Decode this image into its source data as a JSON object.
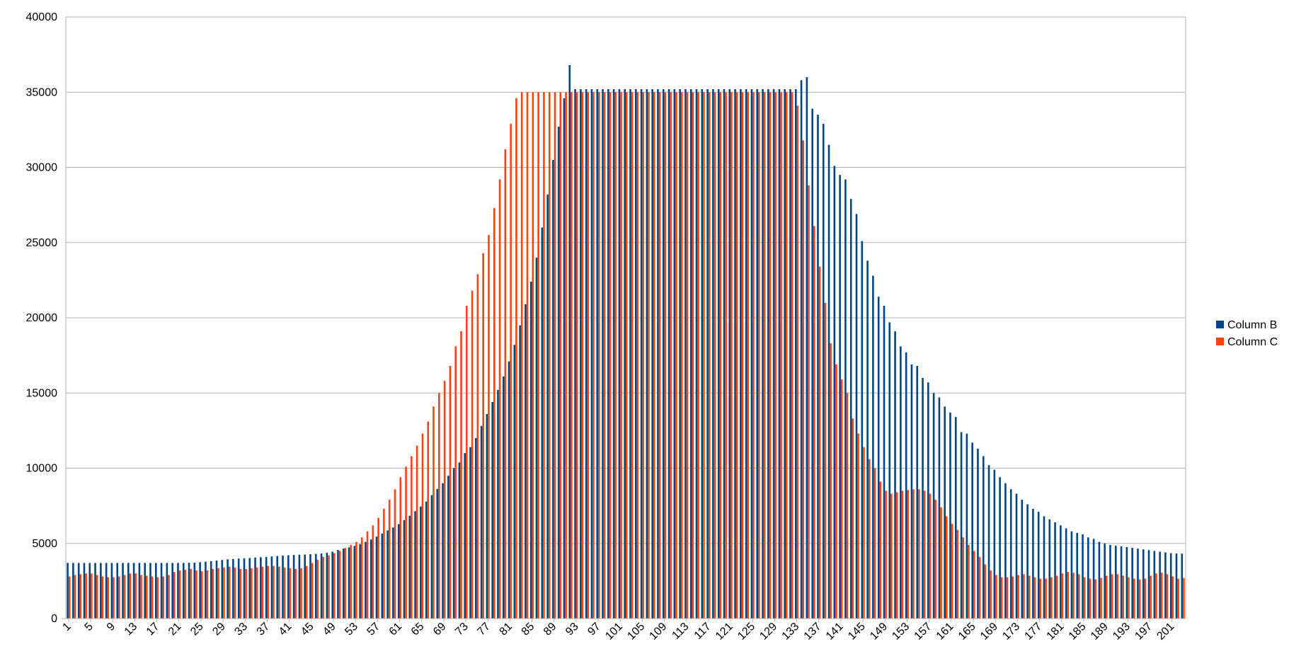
{
  "chart_data": {
    "type": "bar",
    "title": "",
    "xlabel": "",
    "ylabel": "",
    "x_start": 1,
    "x_end": 203,
    "x_tick_step": 4,
    "ylim": [
      0,
      40000
    ],
    "y_ticks": [
      0,
      5000,
      10000,
      15000,
      20000,
      25000,
      30000,
      35000,
      40000
    ],
    "grid": true,
    "legend_position": "right",
    "series": [
      {
        "name": "Column B",
        "color": "#004586",
        "values": [
          3700,
          3700,
          3700,
          3700,
          3700,
          3700,
          3700,
          3700,
          3700,
          3700,
          3700,
          3700,
          3700,
          3700,
          3700,
          3700,
          3700,
          3700,
          3700,
          3700,
          3700,
          3700,
          3710,
          3720,
          3750,
          3780,
          3820,
          3860,
          3900,
          3940,
          3960,
          3990,
          4010,
          4030,
          4060,
          4080,
          4100,
          4130,
          4160,
          4190,
          4210,
          4230,
          4250,
          4260,
          4280,
          4300,
          4330,
          4380,
          4450,
          4560,
          4650,
          4730,
          4830,
          4950,
          5100,
          5260,
          5450,
          5650,
          5860,
          6060,
          6280,
          6550,
          6840,
          7140,
          7450,
          7780,
          8210,
          8620,
          9000,
          9500,
          10000,
          10380,
          11000,
          11400,
          12000,
          12800,
          13600,
          14400,
          15200,
          16100,
          17100,
          18200,
          19500,
          20900,
          22400,
          24000,
          26000,
          28200,
          30500,
          32700,
          34600,
          36800,
          35200,
          35200,
          35200,
          35200,
          35200,
          35200,
          35200,
          35200,
          35200,
          35200,
          35200,
          35200,
          35200,
          35200,
          35200,
          35200,
          35200,
          35200,
          35200,
          35200,
          35200,
          35200,
          35200,
          35200,
          35200,
          35200,
          35200,
          35200,
          35200,
          35200,
          35200,
          35200,
          35200,
          35200,
          35200,
          35200,
          35200,
          35200,
          35200,
          35200,
          35200,
          35800,
          36000,
          33900,
          33500,
          32900,
          31500,
          30100,
          29500,
          29200,
          27900,
          26900,
          25100,
          23800,
          22800,
          21400,
          20800,
          19700,
          19100,
          18100,
          17700,
          16900,
          16800,
          16000,
          15700,
          15000,
          14700,
          14100,
          13700,
          13400,
          12400,
          12300,
          11700,
          11300,
          10800,
          10200,
          9900,
          9400,
          9000,
          8600,
          8300,
          7900,
          7600,
          7300,
          7100,
          6800,
          6600,
          6400,
          6200,
          6000,
          5800,
          5700,
          5600,
          5400,
          5300,
          5100,
          5000,
          4900,
          4850,
          4800,
          4750,
          4700,
          4650,
          4600,
          4550,
          4500,
          4450,
          4400,
          4350,
          4330,
          4320
        ]
      },
      {
        "name": "Column C",
        "color": "#ff420e",
        "values": [
          2800,
          2900,
          2950,
          3000,
          3000,
          2900,
          2800,
          2750,
          2750,
          2800,
          2900,
          3000,
          3000,
          2900,
          2850,
          2800,
          2750,
          2800,
          2900,
          3100,
          3200,
          3250,
          3300,
          3200,
          3150,
          3200,
          3300,
          3350,
          3400,
          3450,
          3400,
          3300,
          3300,
          3350,
          3400,
          3450,
          3500,
          3500,
          3450,
          3400,
          3350,
          3300,
          3350,
          3500,
          3700,
          3900,
          4100,
          4200,
          4350,
          4500,
          4700,
          4900,
          5100,
          5400,
          5800,
          6200,
          6700,
          7300,
          7900,
          8600,
          9400,
          10100,
          10800,
          11500,
          12300,
          13100,
          14100,
          15000,
          15800,
          16800,
          18100,
          19100,
          20800,
          21800,
          22900,
          24300,
          25500,
          27300,
          29200,
          31200,
          32900,
          34600,
          35000,
          35000,
          35000,
          35000,
          35000,
          35000,
          35000,
          35000,
          35000,
          35000,
          35000,
          35000,
          35000,
          35000,
          35000,
          35000,
          35000,
          35000,
          35000,
          35000,
          35000,
          35000,
          35000,
          35000,
          35000,
          35000,
          35000,
          35000,
          35000,
          35000,
          35000,
          35000,
          35000,
          35000,
          35000,
          35000,
          35000,
          35000,
          35000,
          35000,
          35000,
          35000,
          35000,
          35000,
          35000,
          35000,
          35000,
          35000,
          35000,
          35000,
          34100,
          31800,
          28800,
          26100,
          23400,
          21000,
          18300,
          16900,
          15900,
          15000,
          13300,
          12300,
          11400,
          10600,
          10000,
          9100,
          8500,
          8300,
          8400,
          8500,
          8550,
          8600,
          8600,
          8500,
          8300,
          7900,
          7400,
          6800,
          6300,
          5900,
          5400,
          4900,
          4500,
          4100,
          3600,
          3200,
          2900,
          2750,
          2750,
          2800,
          2900,
          2950,
          2850,
          2750,
          2650,
          2650,
          2750,
          2850,
          3000,
          3100,
          3050,
          2950,
          2750,
          2650,
          2600,
          2700,
          2850,
          2950,
          2950,
          2850,
          2750,
          2650,
          2600,
          2650,
          2850,
          3000,
          3050,
          2950,
          2800,
          2650,
          2700
        ]
      }
    ]
  }
}
